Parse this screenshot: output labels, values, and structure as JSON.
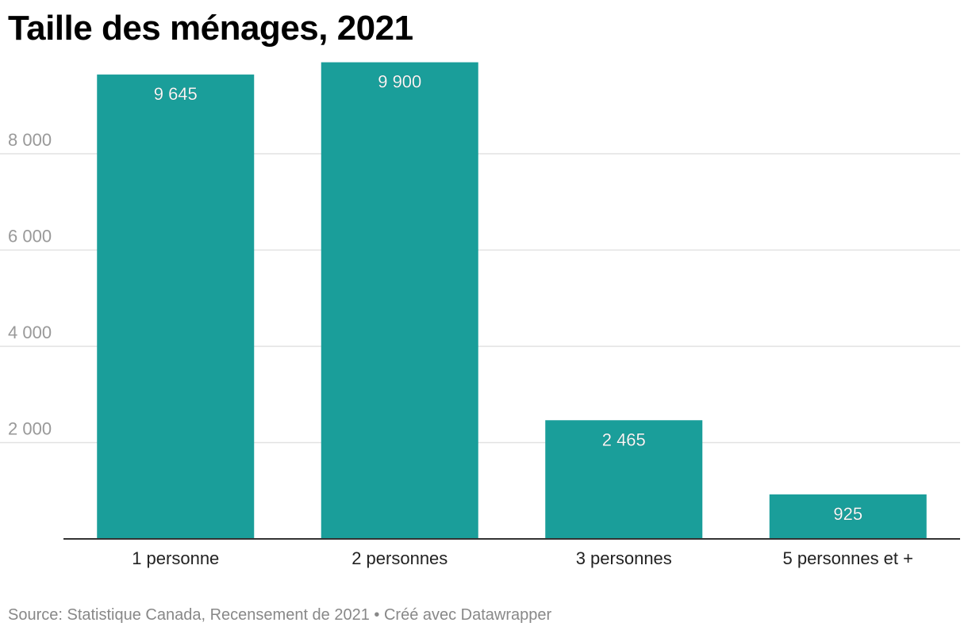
{
  "chart_data": {
    "type": "bar",
    "title": "Taille des ménages, 2021",
    "categories": [
      "1 personne",
      "2 personnes",
      "3 personnes",
      "5 personnes et +"
    ],
    "values": [
      9645,
      9900,
      2465,
      925
    ],
    "value_labels": [
      "9 645",
      "9 900",
      "2 465",
      "925"
    ],
    "y_ticks": [
      {
        "value": 2000,
        "label": "2 000"
      },
      {
        "value": 4000,
        "label": "4 000"
      },
      {
        "value": 6000,
        "label": "6 000"
      },
      {
        "value": 8000,
        "label": "8 000"
      }
    ],
    "ylim": [
      0,
      10000
    ],
    "grid": true,
    "bar_color": "#1a9e9a",
    "xlabel": "",
    "ylabel": ""
  },
  "footer": {
    "source_text": "Source: Statistique Canada, Recensement de 2021 • Créé avec Datawrapper"
  }
}
